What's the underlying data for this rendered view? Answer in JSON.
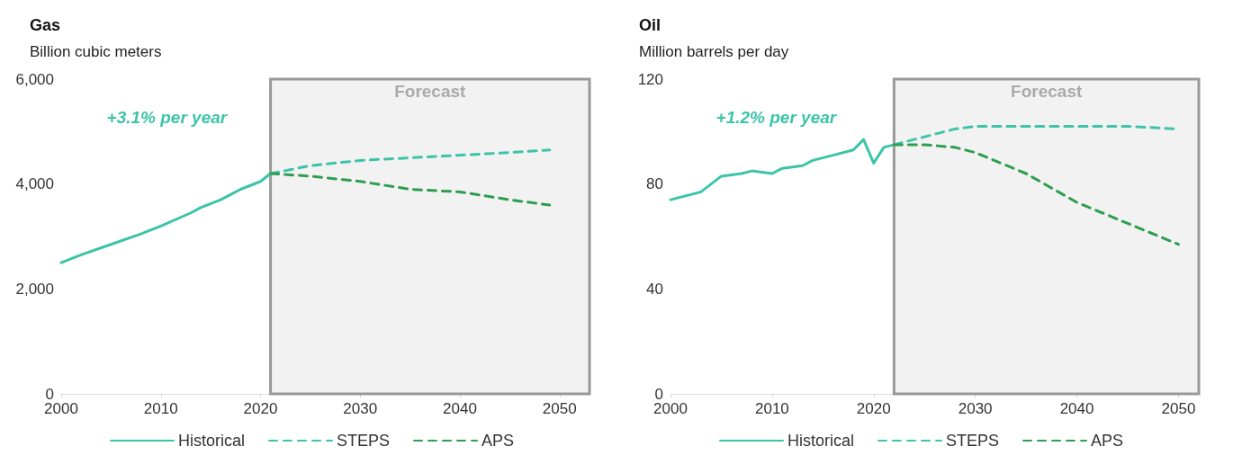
{
  "chart_data": [
    {
      "type": "line",
      "title": "Gas",
      "ylabel": "Billion cubic meters",
      "xlim": [
        2000,
        2053
      ],
      "xticks": [
        2000,
        2010,
        2020,
        2030,
        2040,
        2050
      ],
      "ylim": [
        0,
        6000
      ],
      "yticks": [
        0,
        {
          "value": 2000,
          "label": "2,000"
        },
        {
          "value": 4000,
          "label": "4,000"
        },
        {
          "value": 6000,
          "label": "6,000"
        }
      ],
      "grid": false,
      "legend": "bottom",
      "marker": "none",
      "series": [
        {
          "name": "Historical",
          "color": "#3cc4a8",
          "line_style": "solid",
          "x": [
            2000,
            2002,
            2005,
            2008,
            2010,
            2013,
            2014,
            2016,
            2018,
            2020,
            2021
          ],
          "values": [
            2500,
            2650,
            2850,
            3050,
            3200,
            3450,
            3550,
            3700,
            3900,
            4050,
            4200
          ]
        },
        {
          "name": "STEPS",
          "color": "#3cc4a8",
          "line_style": "dashed",
          "x": [
            2021,
            2025,
            2030,
            2035,
            2040,
            2045,
            2049
          ],
          "values": [
            4200,
            4350,
            4450,
            4500,
            4550,
            4600,
            4650
          ]
        },
        {
          "name": "APS",
          "color": "#2e9e4f",
          "line_style": "dashed",
          "x": [
            2021,
            2025,
            2030,
            2035,
            2040,
            2045,
            2049
          ],
          "values": [
            4200,
            4150,
            4050,
            3900,
            3850,
            3700,
            3600
          ]
        }
      ],
      "bands": [
        {
          "axis": "x",
          "from": 2021,
          "to": 2053,
          "label": "Forecast",
          "color": "#f2f2f2"
        }
      ],
      "annotations": [
        "+3.1% per year"
      ]
    },
    {
      "type": "line",
      "title": "Oil",
      "ylabel": "Million barrels per day",
      "xlim": [
        2000,
        2052
      ],
      "xticks": [
        2000,
        2010,
        2020,
        2030,
        2040,
        2050
      ],
      "ylim": [
        0,
        120
      ],
      "yticks": [
        0,
        40,
        80,
        120
      ],
      "grid": false,
      "legend": "bottom",
      "marker": "none",
      "series": [
        {
          "name": "Historical",
          "color": "#3cc4a8",
          "line_style": "solid",
          "x": [
            2000,
            2002,
            2003,
            2004,
            2005,
            2007,
            2008,
            2010,
            2011,
            2013,
            2014,
            2016,
            2018,
            2019,
            2020,
            2021,
            2022
          ],
          "values": [
            74,
            76,
            77,
            80,
            83,
            84,
            85,
            84,
            86,
            87,
            89,
            91,
            93,
            97,
            88,
            94,
            95
          ]
        },
        {
          "name": "STEPS",
          "color": "#3cc4a8",
          "line_style": "dashed",
          "x": [
            2022,
            2025,
            2028,
            2030,
            2035,
            2040,
            2045,
            2050
          ],
          "values": [
            95,
            98,
            101,
            102,
            102,
            102,
            102,
            101
          ]
        },
        {
          "name": "APS",
          "color": "#2e9e4f",
          "line_style": "dashed",
          "x": [
            2022,
            2025,
            2028,
            2030,
            2035,
            2040,
            2045,
            2050
          ],
          "values": [
            95,
            95,
            94,
            92,
            84,
            73,
            65,
            57
          ]
        }
      ],
      "bands": [
        {
          "axis": "x",
          "from": 2022,
          "to": 2052,
          "label": "Forecast",
          "color": "#f2f2f2"
        }
      ],
      "annotations": [
        "+1.2% per year"
      ]
    }
  ]
}
